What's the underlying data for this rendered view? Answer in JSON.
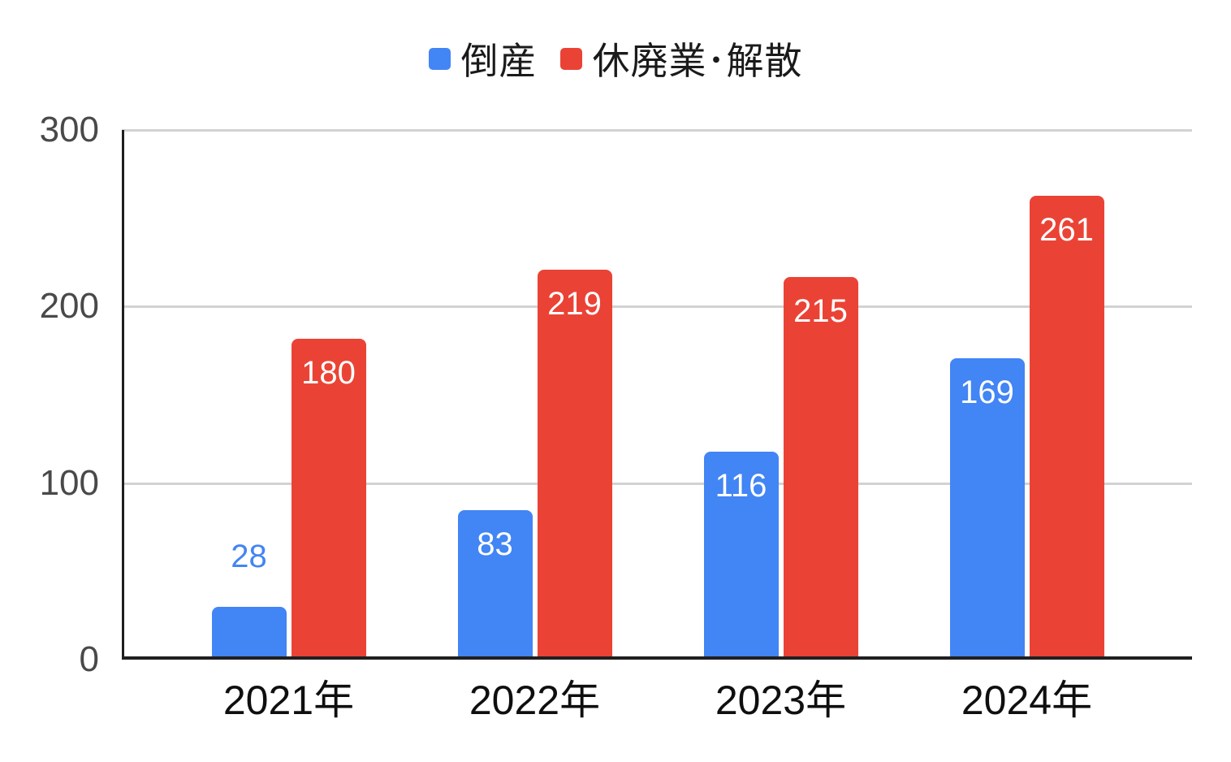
{
  "chart_data": {
    "type": "bar",
    "title": "",
    "xlabel": "",
    "ylabel": "",
    "categories": [
      "2021年",
      "2022年",
      "2023年",
      "2024年"
    ],
    "series": [
      {
        "name": "倒産",
        "color": "#4285f4",
        "values": [
          28,
          83,
          116,
          169
        ]
      },
      {
        "name": "休廃業･解散",
        "color": "#ea4335",
        "values": [
          180,
          219,
          215,
          261
        ]
      }
    ],
    "ylim": [
      0,
      300
    ],
    "yticks": [
      300,
      200,
      100,
      0
    ],
    "grid": true,
    "legend_position": "top",
    "data_labels": true,
    "styles": {
      "background": "#ffffff",
      "grid_color": "#d2d2d2",
      "axis_color": "#1f1f1f",
      "ytick_color": "#494949",
      "xtick_color": "#0f0f0f",
      "legend_text_color": "#1a1a1a",
      "inside_label_color": "#ffffff"
    }
  }
}
